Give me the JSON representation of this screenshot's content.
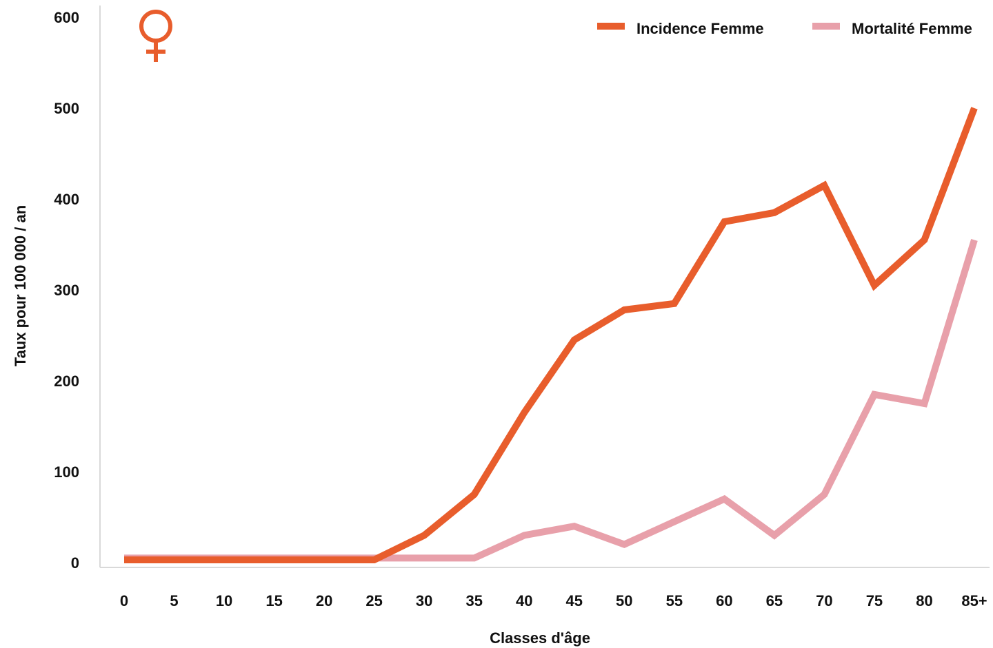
{
  "chart_data": {
    "type": "line",
    "categories": [
      "0",
      "5",
      "10",
      "15",
      "20",
      "25",
      "30",
      "35",
      "40",
      "45",
      "50",
      "55",
      "60",
      "65",
      "70",
      "75",
      "80",
      "85+"
    ],
    "series": [
      {
        "name": "Incidence Femme",
        "color": "#E85D2C",
        "values": [
          3,
          3,
          3,
          3,
          3,
          3,
          30,
          75,
          165,
          245,
          278,
          285,
          375,
          385,
          415,
          305,
          355,
          500
        ]
      },
      {
        "name": "Mortalité Femme",
        "color": "#E8A0AA",
        "values": [
          5,
          5,
          5,
          5,
          5,
          5,
          5,
          5,
          30,
          40,
          20,
          45,
          70,
          30,
          75,
          185,
          175,
          355
        ]
      }
    ],
    "title": "",
    "xlabel": "Classes d'âge",
    "ylabel": "Taux pour 100 000 / an",
    "ylim": [
      0,
      600
    ],
    "yticks": [
      "0",
      "100",
      "200",
      "300",
      "400",
      "500",
      "600"
    ],
    "grid": false,
    "legend_position": "top-right",
    "symbol": {
      "icon": "female-symbol-icon",
      "color": "#E85D2C"
    }
  }
}
